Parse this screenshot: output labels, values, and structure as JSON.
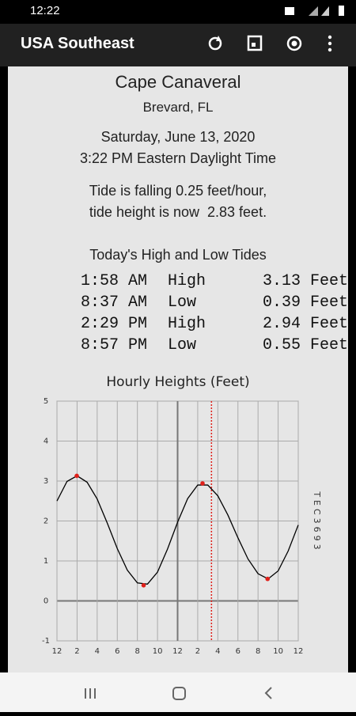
{
  "status_bar": {
    "time": "12:22"
  },
  "app_bar": {
    "title": "USA Southeast"
  },
  "header": {
    "location": "Cape Canaveral",
    "county": "Brevard, FL",
    "date": "Saturday, June 13, 2020",
    "time": "3:22 PM Eastern Daylight Time"
  },
  "tide_status": [
    "Tide is falling 0.25 feet/hour,",
    "tide height is now  2.83 feet."
  ],
  "tides_table": {
    "title": "Today's High and Low Tides",
    "rows": [
      [
        "1:58 AM",
        "High",
        "3.13",
        "Feet"
      ],
      [
        "8:37 AM",
        "Low",
        "0.39",
        "Feet"
      ],
      [
        "2:29 PM",
        "High",
        "2.94",
        "Feet"
      ],
      [
        "8:57 PM",
        "Low",
        "0.55",
        "Feet"
      ]
    ]
  },
  "chart_data": {
    "type": "line",
    "title": "Hourly Heights (Feet)",
    "side_label": "TEC3693",
    "x": [
      0,
      1,
      2,
      3,
      4,
      5,
      6,
      7,
      8,
      9,
      10,
      11,
      12,
      13,
      14,
      15,
      16,
      17,
      18,
      19,
      20,
      21,
      22,
      23,
      24
    ],
    "values": [
      2.5,
      2.99,
      3.13,
      2.97,
      2.55,
      1.95,
      1.31,
      0.77,
      0.45,
      0.42,
      0.72,
      1.3,
      1.97,
      2.56,
      2.9,
      2.9,
      2.63,
      2.15,
      1.58,
      1.05,
      0.68,
      0.55,
      0.75,
      1.25,
      1.9
    ],
    "color": "#000000",
    "points": {
      "x": [
        1.97,
        8.62,
        14.48,
        20.95
      ],
      "values": [
        3.13,
        0.39,
        2.94,
        0.55
      ],
      "color": "#e0201a"
    },
    "now_x": 15.37,
    "now_color": "#e0201a",
    "xlim": [
      0,
      24
    ],
    "ylim": [
      -1,
      5
    ],
    "xticks": [
      {
        "value": 0,
        "label": "12"
      },
      2,
      4,
      6,
      8,
      10,
      12,
      {
        "value": 14,
        "label": "2"
      },
      {
        "value": 16,
        "label": "4"
      },
      {
        "value": 18,
        "label": "6"
      },
      {
        "value": 20,
        "label": "8"
      },
      {
        "value": 22,
        "label": "10"
      },
      {
        "value": 24,
        "label": "12"
      }
    ],
    "yticks": [
      -1,
      0,
      1,
      2,
      3,
      4,
      5
    ],
    "grid": true
  }
}
